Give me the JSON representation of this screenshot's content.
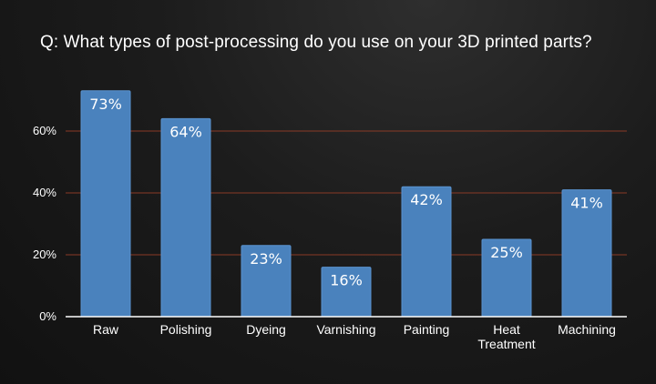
{
  "title": "Q: What types of post-processing do you use on your 3D printed parts?",
  "chart_data": {
    "type": "bar",
    "title": "Q: What types of post-processing do you use on your 3D printed parts?",
    "categories": [
      "Raw",
      "Polishing",
      "Dyeing",
      "Varnishing",
      "Painting",
      "Heat\nTreatment",
      "Machining"
    ],
    "values": [
      73,
      64,
      23,
      16,
      42,
      25,
      41
    ],
    "data_labels": [
      "73%",
      "64%",
      "23%",
      "16%",
      "42%",
      "25%",
      "41%"
    ],
    "y_ticks": [
      0,
      20,
      40,
      60
    ],
    "y_tick_labels": [
      "0%",
      "20%",
      "40%",
      "60%"
    ],
    "ylim": [
      0,
      75
    ],
    "grid": true,
    "legend": false,
    "xlabel": "",
    "ylabel": "",
    "colors": {
      "bar": "#4a82bd",
      "bar_edge": "#5a93cf",
      "grid": "#8a3a26",
      "axis": "#ffffff",
      "text": "#ffffff"
    }
  }
}
